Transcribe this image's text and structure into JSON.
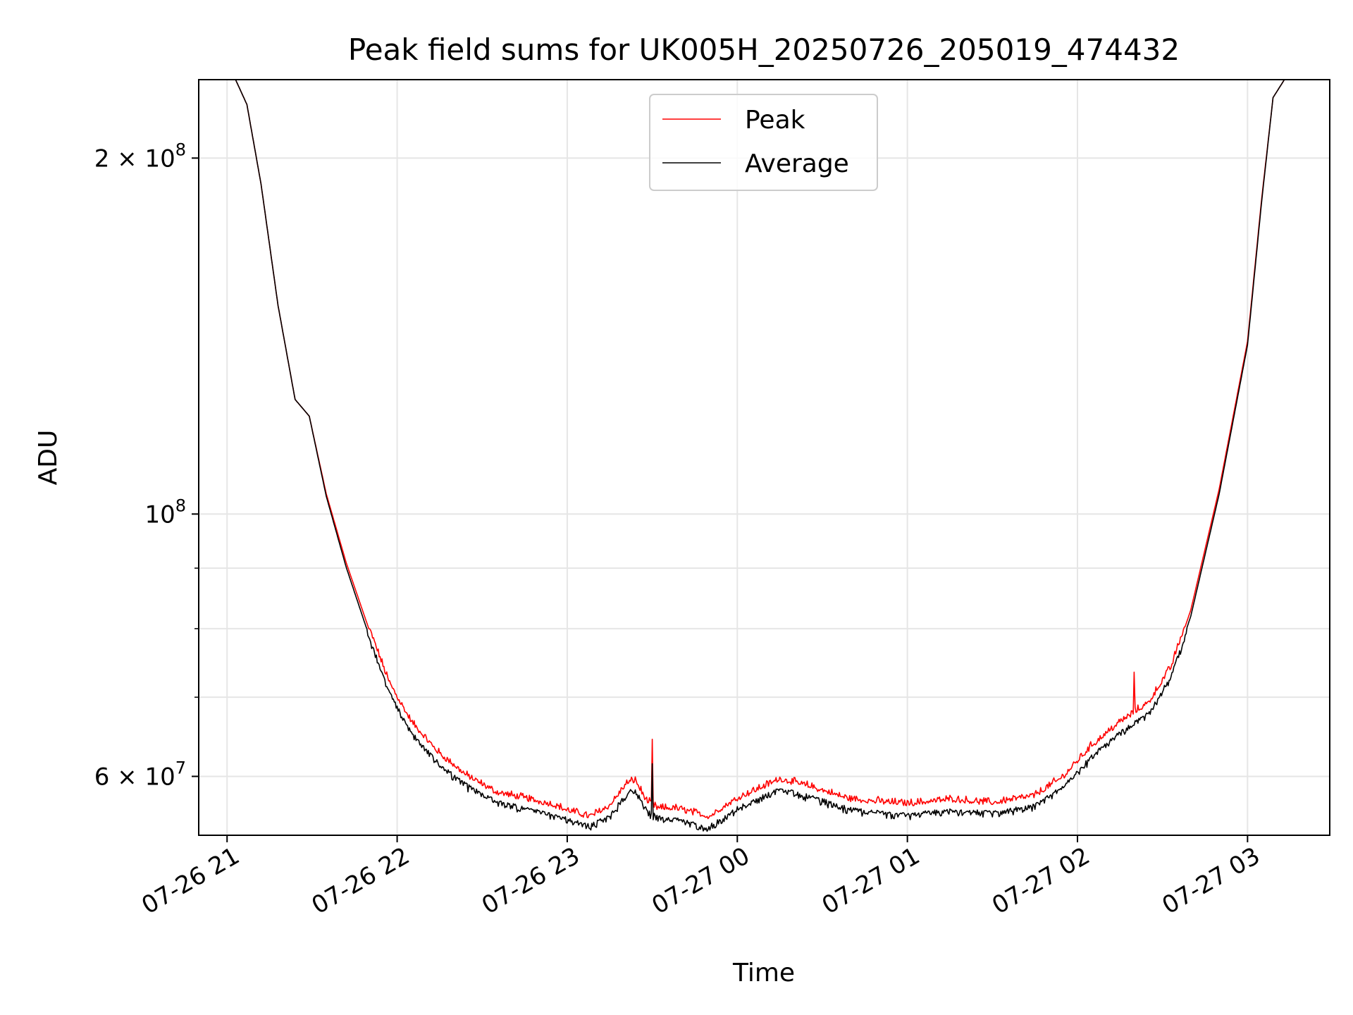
{
  "chart_data": {
    "type": "line",
    "title": "Peak field sums for UK005H_20250726_205019_474432",
    "xlabel": "Time",
    "ylabel": "ADU",
    "y_scale": "log",
    "ylim": [
      53500000,
      233000000
    ],
    "xlim": [
      "2025-07-26 20:50",
      "2025-07-27 03:29"
    ],
    "grid": true,
    "legend": {
      "placement": "upper center"
    },
    "x_ticks": [
      "07-26 21",
      "07-26 22",
      "07-26 23",
      "07-27 00",
      "07-27 01",
      "07-27 02",
      "07-27 03"
    ],
    "y_ticks": [
      {
        "value": 200000000,
        "mantissa": "2",
        "exponent": "8",
        "label": "2 × 10^8"
      },
      {
        "value": 100000000,
        "mantissa": "",
        "exponent": "8",
        "label": "10^8"
      },
      {
        "value": 60000000,
        "mantissa": "6",
        "exponent": "7",
        "label": "6 × 10^7"
      }
    ],
    "y_minor_ticks": [
      70000000,
      80000000,
      90000000
    ],
    "series": [
      {
        "name": "Peak",
        "color": "#ff0000",
        "noise": "up",
        "points": [
          [
            "2025-07-26 21:03",
            233000000
          ],
          [
            "2025-07-26 21:07",
            222000000
          ],
          [
            "2025-07-26 21:12",
            190000000
          ],
          [
            "2025-07-26 21:18",
            150000000
          ],
          [
            "2025-07-26 21:24",
            125000000
          ],
          [
            "2025-07-26 21:29",
            121000000
          ],
          [
            "2025-07-26 21:35",
            104000000
          ],
          [
            "2025-07-26 21:42",
            91000000
          ],
          [
            "2025-07-26 21:50",
            80000000
          ],
          [
            "2025-07-26 21:57",
            72000000
          ],
          [
            "2025-07-26 22:05",
            66500000
          ],
          [
            "2025-07-26 22:15",
            62500000
          ],
          [
            "2025-07-26 22:25",
            59800000
          ],
          [
            "2025-07-26 22:35",
            58000000
          ],
          [
            "2025-07-26 22:45",
            57300000
          ],
          [
            "2025-07-26 22:55",
            56600000
          ],
          [
            "2025-07-26 23:00",
            56000000
          ],
          [
            "2025-07-26 23:08",
            55300000
          ],
          [
            "2025-07-26 23:15",
            56500000
          ],
          [
            "2025-07-26 23:21",
            59000000
          ],
          [
            "2025-07-26 23:24",
            59400000
          ],
          [
            "2025-07-26 23:28",
            57000000
          ],
          [
            "2025-07-26 23:32",
            56200000
          ],
          [
            "2025-07-26 23:38",
            56200000
          ],
          [
            "2025-07-26 23:41",
            56000000
          ],
          [
            "2025-07-26 23:50",
            55300000
          ],
          [
            "2025-07-27 00:00",
            57300000
          ],
          [
            "2025-07-27 00:15",
            59500000
          ],
          [
            "2025-07-27 00:25",
            58700000
          ],
          [
            "2025-07-27 00:40",
            57200000
          ],
          [
            "2025-07-27 01:00",
            56700000
          ],
          [
            "2025-07-27 01:15",
            57200000
          ],
          [
            "2025-07-27 01:30",
            56800000
          ],
          [
            "2025-07-27 01:45",
            57600000
          ],
          [
            "2025-07-27 01:55",
            59800000
          ],
          [
            "2025-07-27 02:05",
            63500000
          ],
          [
            "2025-07-27 02:15",
            66500000
          ],
          [
            "2025-07-27 02:25",
            69000000
          ],
          [
            "2025-07-27 02:33",
            74000000
          ],
          [
            "2025-07-27 02:40",
            83000000
          ],
          [
            "2025-07-27 02:50",
            105000000
          ],
          [
            "2025-07-27 03:00",
            140000000
          ],
          [
            "2025-07-27 03:05",
            185000000
          ],
          [
            "2025-07-27 03:09",
            225000000
          ],
          [
            "2025-07-27 03:13",
            233000000
          ],
          [
            "2025-07-27 03:29",
            233000000
          ]
        ],
        "spikes": [
          [
            "2025-07-26 23:30",
            64500000
          ],
          [
            "2025-07-27 02:20",
            73500000
          ]
        ]
      },
      {
        "name": "Average",
        "color": "#000000",
        "noise": "down",
        "points": [
          [
            "2025-07-26 21:03",
            233000000
          ],
          [
            "2025-07-26 21:07",
            222000000
          ],
          [
            "2025-07-26 21:12",
            190000000
          ],
          [
            "2025-07-26 21:18",
            150000000
          ],
          [
            "2025-07-26 21:24",
            125000000
          ],
          [
            "2025-07-26 21:29",
            121000000
          ],
          [
            "2025-07-26 21:35",
            103500000
          ],
          [
            "2025-07-26 21:42",
            90200000
          ],
          [
            "2025-07-26 21:50",
            79000000
          ],
          [
            "2025-07-26 21:57",
            71000000
          ],
          [
            "2025-07-26 22:05",
            65500000
          ],
          [
            "2025-07-26 22:15",
            61500000
          ],
          [
            "2025-07-26 22:25",
            59000000
          ],
          [
            "2025-07-26 22:35",
            57300000
          ],
          [
            "2025-07-26 22:45",
            56500000
          ],
          [
            "2025-07-26 22:55",
            55800000
          ],
          [
            "2025-07-26 23:00",
            55300000
          ],
          [
            "2025-07-26 23:08",
            54600000
          ],
          [
            "2025-07-26 23:15",
            55700000
          ],
          [
            "2025-07-26 23:21",
            58200000
          ],
          [
            "2025-07-26 23:24",
            58600000
          ],
          [
            "2025-07-26 23:28",
            56300000
          ],
          [
            "2025-07-26 23:32",
            55500000
          ],
          [
            "2025-07-26 23:38",
            55300000
          ],
          [
            "2025-07-26 23:41",
            55100000
          ],
          [
            "2025-07-26 23:50",
            54500000
          ],
          [
            "2025-07-27 00:00",
            56500000
          ],
          [
            "2025-07-27 00:15",
            58700000
          ],
          [
            "2025-07-27 00:25",
            57900000
          ],
          [
            "2025-07-27 00:40",
            56400000
          ],
          [
            "2025-07-27 01:00",
            55800000
          ],
          [
            "2025-07-27 01:15",
            56300000
          ],
          [
            "2025-07-27 01:30",
            56000000
          ],
          [
            "2025-07-27 01:45",
            56800000
          ],
          [
            "2025-07-27 01:55",
            58900000
          ],
          [
            "2025-07-27 02:05",
            62500000
          ],
          [
            "2025-07-27 02:15",
            65500000
          ],
          [
            "2025-07-27 02:25",
            68000000
          ],
          [
            "2025-07-27 02:33",
            73000000
          ],
          [
            "2025-07-27 02:40",
            82000000
          ],
          [
            "2025-07-27 02:50",
            104000000
          ],
          [
            "2025-07-27 03:00",
            139000000
          ],
          [
            "2025-07-27 03:05",
            184000000
          ],
          [
            "2025-07-27 03:09",
            225000000
          ],
          [
            "2025-07-27 03:13",
            233000000
          ],
          [
            "2025-07-27 03:29",
            233000000
          ]
        ],
        "spikes": [
          [
            "2025-07-26 23:30",
            61500000
          ]
        ]
      }
    ]
  }
}
